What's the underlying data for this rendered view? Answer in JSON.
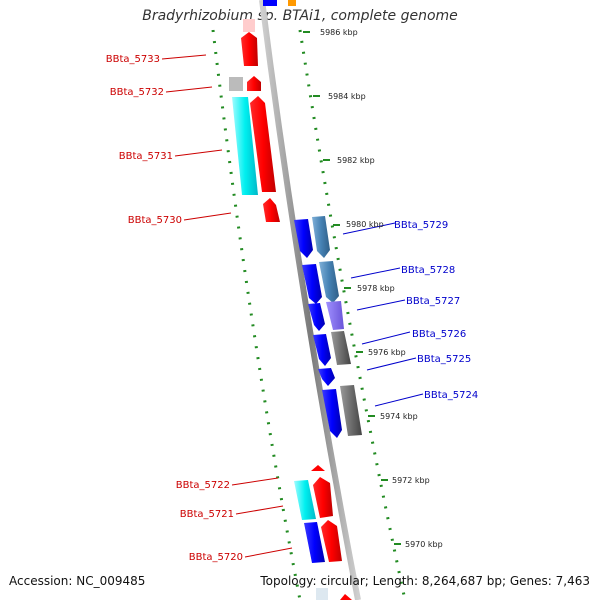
{
  "title": "Bradyrhizobium sp. BTAi1, complete genome",
  "footer": {
    "accession": "Accession: NC_009485",
    "topology": "Topology: circular; Length: 8,264,687 bp; Genes: 7,463"
  },
  "ticks": [
    "5986 kbp",
    "5984 kbp",
    "5982 kbp",
    "5980 kbp",
    "5978 kbp",
    "5976 kbp",
    "5974 kbp",
    "5972 kbp",
    "5970 kbp"
  ],
  "reverse_genes": [
    "BBta_5733",
    "BBta_5732",
    "BBta_5731",
    "BBta_5730",
    "BBta_5722",
    "BBta_5721",
    "BBta_5720"
  ],
  "forward_genes": [
    "BBta_5729",
    "BBta_5728",
    "BBta_5727",
    "BBta_5726",
    "BBta_5725",
    "BBta_5724"
  ],
  "colors": {
    "reverse_label": "#cc0000",
    "forward_label": "#0000cc",
    "red": "#ff0000",
    "blue": "#0000ff",
    "cyan": "#00ffff",
    "steel": "#4682b4",
    "purple": "#7b68ee",
    "gray": "#6e6e6e",
    "tick_green": "#228b22"
  }
}
